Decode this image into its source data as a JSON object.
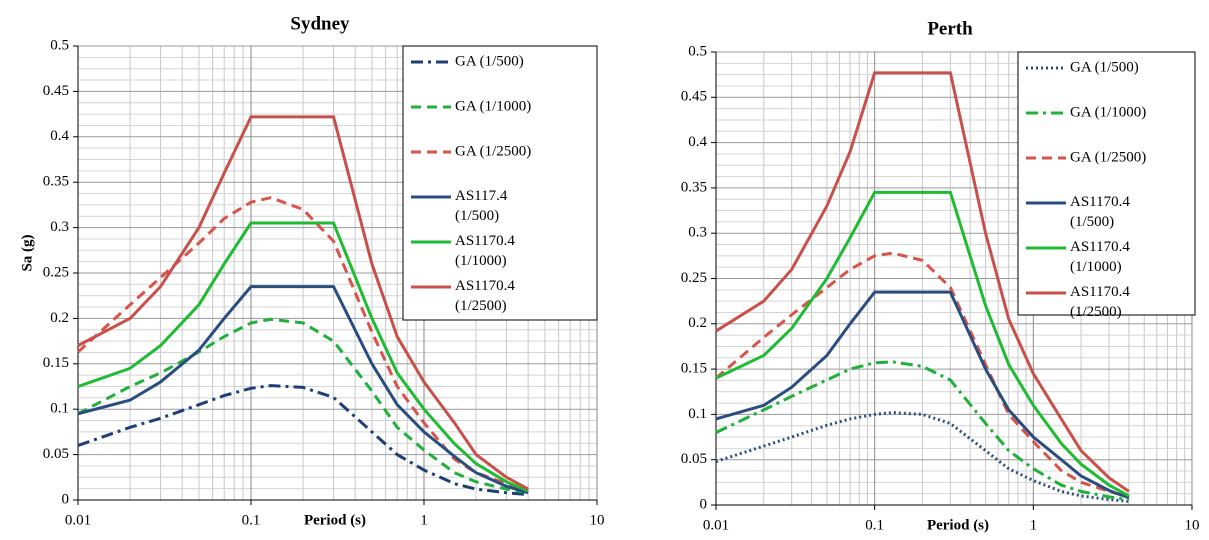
{
  "chart_data": [
    {
      "type": "line",
      "title": "Sydney",
      "x_label": "Period (s)",
      "y_label": "Sa (g)",
      "x_scale": "log",
      "grid": true,
      "legend": "upper right",
      "xlim": [
        0.01,
        10
      ],
      "xticks": [
        0.01,
        0.1,
        1,
        10
      ],
      "ylim": [
        0,
        0.5
      ],
      "yticks": [
        0,
        0.05,
        0.1,
        0.15,
        0.2,
        0.25,
        0.3,
        0.35,
        0.4,
        0.45,
        0.5
      ],
      "x": [
        0.01,
        0.02,
        0.03,
        0.05,
        0.07,
        0.1,
        0.13,
        0.2,
        0.3,
        0.5,
        0.7,
        1,
        1.5,
        2,
        3,
        4
      ],
      "series": [
        {
          "name": "GA (1/500)",
          "color": "#1f3f77",
          "dash": "dashdot",
          "values": [
            0.06,
            0.08,
            0.09,
            0.105,
            0.115,
            0.123,
            0.126,
            0.124,
            0.113,
            0.075,
            0.05,
            0.033,
            0.018,
            0.012,
            0.008,
            0.006
          ]
        },
        {
          "name": "GA (1/1000)",
          "color": "#1fb03a",
          "dash": "dashed",
          "values": [
            0.095,
            0.125,
            0.14,
            0.163,
            0.18,
            0.195,
            0.199,
            0.195,
            0.175,
            0.12,
            0.08,
            0.055,
            0.03,
            0.02,
            0.012,
            0.008
          ]
        },
        {
          "name": "GA (1/2500)",
          "color": "#d9534a",
          "dash": "dashed",
          "values": [
            0.163,
            0.215,
            0.245,
            0.283,
            0.31,
            0.328,
            0.333,
            0.32,
            0.285,
            0.185,
            0.125,
            0.085,
            0.045,
            0.03,
            0.018,
            0.01
          ]
        },
        {
          "name": "AS117.4 (1/500)",
          "color": "#2a4d80",
          "dash": "solid",
          "values": [
            0.095,
            0.11,
            0.13,
            0.165,
            0.2,
            0.235,
            0.235,
            0.235,
            0.235,
            0.15,
            0.105,
            0.075,
            0.048,
            0.03,
            0.015,
            0.008
          ]
        },
        {
          "name": "AS1170.4 (1/1000)",
          "color": "#1fbb33",
          "dash": "solid",
          "values": [
            0.125,
            0.145,
            0.17,
            0.215,
            0.26,
            0.305,
            0.305,
            0.305,
            0.305,
            0.2,
            0.14,
            0.1,
            0.062,
            0.04,
            0.02,
            0.01
          ]
        },
        {
          "name": "AS1170.4 (1/2500)",
          "color": "#c9504a",
          "dash": "solid",
          "values": [
            0.17,
            0.2,
            0.235,
            0.3,
            0.36,
            0.422,
            0.422,
            0.422,
            0.422,
            0.26,
            0.18,
            0.13,
            0.085,
            0.05,
            0.025,
            0.012
          ]
        }
      ]
    },
    {
      "type": "line",
      "title": "Perth",
      "x_label": "Period (s)",
      "x_scale": "log",
      "grid": true,
      "legend": "upper right",
      "xlim": [
        0.01,
        10
      ],
      "xticks": [
        0.01,
        0.1,
        1,
        10
      ],
      "ylim": [
        0,
        0.5
      ],
      "yticks": [
        0,
        0.05,
        0.1,
        0.15,
        0.2,
        0.25,
        0.3,
        0.35,
        0.4,
        0.45,
        0.5
      ],
      "x": [
        0.01,
        0.02,
        0.03,
        0.05,
        0.07,
        0.1,
        0.13,
        0.2,
        0.3,
        0.5,
        0.7,
        1,
        1.5,
        2,
        3,
        4
      ],
      "series": [
        {
          "name": "GA (1/500)",
          "color": "#2a4d80",
          "dash": "dotted",
          "values": [
            0.048,
            0.065,
            0.075,
            0.088,
            0.095,
            0.1,
            0.102,
            0.1,
            0.09,
            0.06,
            0.04,
            0.027,
            0.015,
            0.01,
            0.006,
            0.004
          ]
        },
        {
          "name": "GA (1/1000)",
          "color": "#1fb03a",
          "dash": "dashdot",
          "values": [
            0.08,
            0.105,
            0.12,
            0.138,
            0.15,
            0.157,
            0.158,
            0.153,
            0.138,
            0.09,
            0.06,
            0.04,
            0.022,
            0.015,
            0.009,
            0.006
          ]
        },
        {
          "name": "GA (1/2500)",
          "color": "#d9534a",
          "dash": "dashed",
          "values": [
            0.14,
            0.185,
            0.21,
            0.24,
            0.26,
            0.275,
            0.278,
            0.27,
            0.24,
            0.155,
            0.1,
            0.07,
            0.038,
            0.025,
            0.015,
            0.009
          ]
        },
        {
          "name": "AS1170.4 (1/500)",
          "color": "#2a4d80",
          "dash": "solid",
          "values": [
            0.095,
            0.11,
            0.13,
            0.165,
            0.2,
            0.235,
            0.235,
            0.235,
            0.235,
            0.15,
            0.105,
            0.075,
            0.05,
            0.032,
            0.016,
            0.008
          ]
        },
        {
          "name": "AS1170.4 (1/1000)",
          "color": "#1fbb33",
          "dash": "solid",
          "values": [
            0.14,
            0.165,
            0.195,
            0.25,
            0.295,
            0.345,
            0.345,
            0.345,
            0.345,
            0.22,
            0.155,
            0.11,
            0.068,
            0.045,
            0.022,
            0.01
          ]
        },
        {
          "name": "AS1170.4 (1/2500)",
          "color": "#c9504a",
          "dash": "solid",
          "values": [
            0.192,
            0.225,
            0.26,
            0.33,
            0.39,
            0.477,
            0.477,
            0.477,
            0.477,
            0.3,
            0.205,
            0.145,
            0.095,
            0.06,
            0.03,
            0.015
          ]
        }
      ]
    }
  ]
}
